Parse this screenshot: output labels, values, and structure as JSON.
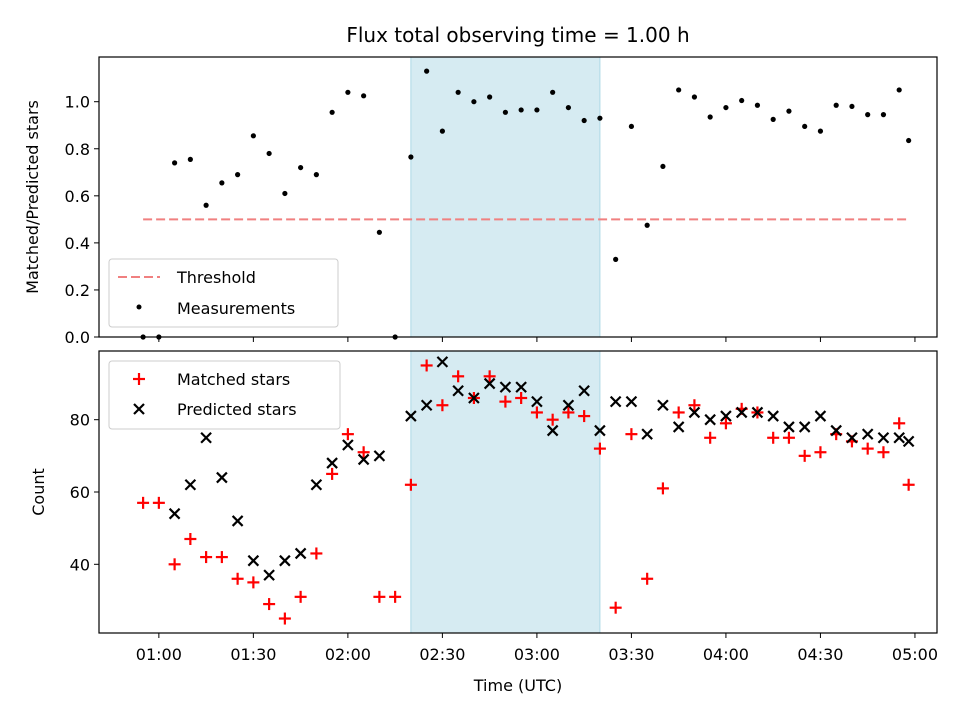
{
  "chart_data": {
    "type": "scatter",
    "title": "Flux total observing time = 1.00 h",
    "xlabel": "Time (UTC)",
    "x_axis_type": "time",
    "x_range": [
      "00:41",
      "05:07"
    ],
    "x_tick_labels": [
      "01:00",
      "01:30",
      "02:00",
      "02:30",
      "03:00",
      "03:30",
      "04:00",
      "04:30",
      "05:00"
    ],
    "x_tick_times": [
      "01:00",
      "01:30",
      "02:00",
      "02:30",
      "03:00",
      "03:30",
      "04:00",
      "04:30",
      "05:00"
    ],
    "highlight_span": [
      "02:20",
      "03:20"
    ],
    "highlight_color": "#add8e6",
    "panels": [
      {
        "ylabel": "Matched/Predicted stars",
        "ylim": [
          0,
          1.19
        ],
        "y_ticks": [
          0.0,
          0.2,
          0.4,
          0.6,
          0.8,
          1.0
        ],
        "y_tick_labels": [
          "0.0",
          "0.2",
          "0.4",
          "0.6",
          "0.8",
          "1.0"
        ],
        "legend_position": "lower-left",
        "threshold": {
          "name": "Threshold",
          "value": 0.5,
          "x_start": "00:55",
          "x_end": "04:58",
          "color": "#f08080"
        },
        "series": [
          {
            "name": "Measurements",
            "marker": "dot",
            "color": "#000000",
            "x": [
              "00:55",
              "01:00",
              "01:05",
              "01:10",
              "01:15",
              "01:20",
              "01:25",
              "01:30",
              "01:35",
              "01:40",
              "01:45",
              "01:50",
              "01:55",
              "02:00",
              "02:05",
              "02:10",
              "02:15",
              "02:20",
              "02:25",
              "02:30",
              "02:35",
              "02:40",
              "02:45",
              "02:50",
              "02:55",
              "03:00",
              "03:05",
              "03:10",
              "03:15",
              "03:20",
              "03:25",
              "03:30",
              "03:35",
              "03:40",
              "03:45",
              "03:50",
              "03:55",
              "04:00",
              "04:05",
              "04:10",
              "04:15",
              "04:20",
              "04:25",
              "04:30",
              "04:35",
              "04:40",
              "04:45",
              "04:50",
              "04:55",
              "04:58"
            ],
            "y": [
              0.0,
              0.0,
              0.74,
              0.755,
              0.56,
              0.655,
              0.69,
              0.855,
              0.78,
              0.61,
              0.72,
              0.69,
              0.955,
              1.04,
              1.025,
              0.445,
              0.0,
              0.765,
              1.13,
              0.875,
              1.04,
              1.0,
              1.02,
              0.955,
              0.965,
              0.965,
              1.04,
              0.975,
              0.92,
              0.93,
              0.33,
              0.895,
              0.475,
              0.725,
              1.05,
              1.02,
              0.935,
              0.975,
              1.005,
              0.985,
              0.925,
              0.96,
              0.895,
              0.875,
              0.985,
              0.98,
              0.945,
              0.945,
              1.05,
              0.835
            ]
          }
        ]
      },
      {
        "ylabel": "Count",
        "ylim": [
          21,
          99
        ],
        "y_ticks": [
          40,
          60,
          80
        ],
        "y_tick_labels": [
          "40",
          "60",
          "80"
        ],
        "legend_position": "upper-left",
        "series": [
          {
            "name": "Matched stars",
            "marker": "plus",
            "color": "#ff0000",
            "x": [
              "00:55",
              "01:00",
              "01:05",
              "01:10",
              "01:15",
              "01:20",
              "01:25",
              "01:30",
              "01:35",
              "01:40",
              "01:45",
              "01:50",
              "01:55",
              "02:00",
              "02:05",
              "02:10",
              "02:15",
              "02:20",
              "02:25",
              "02:30",
              "02:35",
              "02:40",
              "02:45",
              "02:50",
              "02:55",
              "03:00",
              "03:05",
              "03:10",
              "03:15",
              "03:20",
              "03:25",
              "03:30",
              "03:35",
              "03:40",
              "03:45",
              "03:50",
              "03:55",
              "04:00",
              "04:05",
              "04:10",
              "04:15",
              "04:20",
              "04:25",
              "04:30",
              "04:35",
              "04:40",
              "04:45",
              "04:50",
              "04:55",
              "04:58"
            ],
            "y": [
              57,
              57,
              40,
              47,
              42,
              42,
              36,
              35,
              29,
              25,
              31,
              43,
              65,
              76,
              71,
              31,
              31,
              62,
              95,
              84,
              92,
              86,
              92,
              85,
              86,
              82,
              80,
              82,
              81,
              72,
              28,
              76,
              36,
              61,
              82,
              84,
              75,
              79,
              83,
              82,
              75,
              75,
              70,
              71,
              76,
              74,
              72,
              71,
              79,
              62
            ]
          },
          {
            "name": "Predicted stars",
            "marker": "x",
            "color": "#000000",
            "x": [
              "01:05",
              "01:10",
              "01:15",
              "01:20",
              "01:25",
              "01:30",
              "01:35",
              "01:40",
              "01:45",
              "01:50",
              "01:55",
              "02:00",
              "02:05",
              "02:10",
              "02:20",
              "02:25",
              "02:30",
              "02:35",
              "02:40",
              "02:45",
              "02:50",
              "02:55",
              "03:00",
              "03:05",
              "03:10",
              "03:15",
              "03:20",
              "03:25",
              "03:30",
              "03:35",
              "03:40",
              "03:45",
              "03:50",
              "03:55",
              "04:00",
              "04:05",
              "04:10",
              "04:15",
              "04:20",
              "04:25",
              "04:30",
              "04:35",
              "04:40",
              "04:45",
              "04:50",
              "04:55",
              "04:58"
            ],
            "y": [
              54,
              62,
              75,
              64,
              52,
              41,
              37,
              41,
              43,
              62,
              68,
              73,
              69,
              70,
              81,
              84,
              96,
              88,
              86,
              90,
              89,
              89,
              85,
              77,
              84,
              88,
              77,
              85,
              85,
              76,
              84,
              78,
              82,
              80,
              81,
              82,
              82,
              81,
              78,
              78,
              81,
              77,
              75,
              76,
              75,
              75,
              74
            ]
          }
        ]
      }
    ]
  }
}
